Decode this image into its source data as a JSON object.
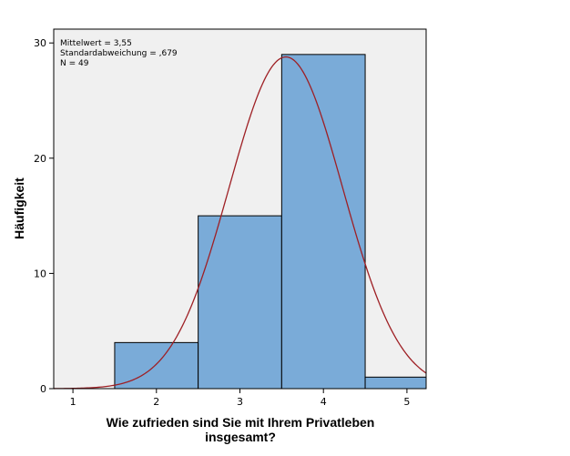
{
  "chart_data": {
    "type": "histogram",
    "xlabel_lines": [
      "Wie zufrieden sind Sie mit Ihrem Privatleben",
      "insgesamt?"
    ],
    "ylabel": "Häufigkeit",
    "bins": [
      {
        "from": 1.5,
        "to": 2.5,
        "count": 4
      },
      {
        "from": 2.5,
        "to": 3.5,
        "count": 15
      },
      {
        "from": 3.5,
        "to": 4.5,
        "count": 29
      },
      {
        "from": 4.5,
        "to": 5.5,
        "count": 1
      }
    ],
    "x_ticks": [
      1,
      2,
      3,
      4,
      5
    ],
    "y_ticks": [
      0,
      10,
      20,
      30
    ],
    "xlim": [
      0.77,
      5.23
    ],
    "ylim": [
      0,
      31.2
    ],
    "stats": {
      "mean_text": "Mittelwert = 3,55",
      "sd_text": "Standardabweichung = ,679",
      "n_text": "N = 49"
    },
    "normal_curve": {
      "mean": 3.55,
      "sd": 0.679,
      "n": 49,
      "bin_width": 1
    },
    "colors": {
      "plot_bg": "#f0f0f0",
      "bar_fill": "#7aabd8",
      "bar_stroke": "#000000",
      "curve": "#9e1f24"
    },
    "legend_position": "top-left",
    "grid": false
  }
}
